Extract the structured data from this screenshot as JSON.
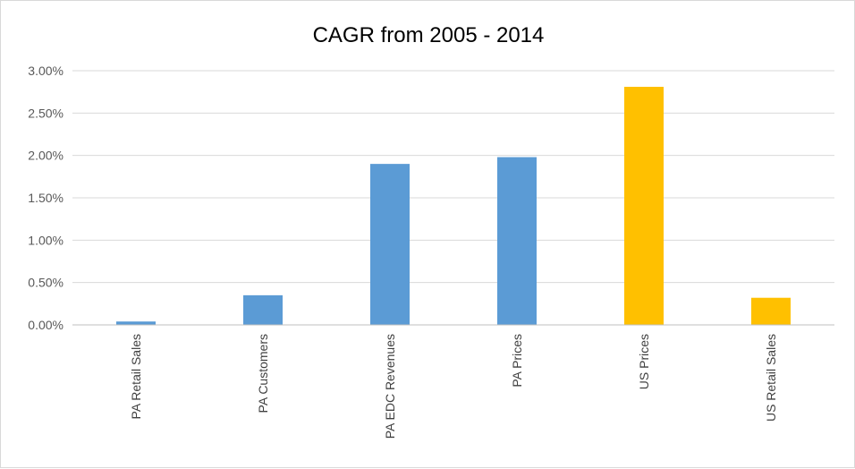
{
  "chart_data": {
    "type": "bar",
    "title": "CAGR from 2005 - 2014",
    "xlabel": "",
    "ylabel": "",
    "categories": [
      "PA Retail Sales",
      "PA Customers",
      "PA EDC Revenues",
      "PA Prices",
      "US Prices",
      "US Retail Sales"
    ],
    "values": [
      0.04,
      0.35,
      1.9,
      1.98,
      2.81,
      0.32
    ],
    "value_unit": "%",
    "bar_colors": [
      "#5b9bd5",
      "#5b9bd5",
      "#5b9bd5",
      "#5b9bd5",
      "#ffc000",
      "#ffc000"
    ],
    "ylim": [
      0,
      3
    ],
    "yticks": [
      0,
      0.5,
      1,
      1.5,
      2,
      2.5,
      3
    ],
    "ytick_labels": [
      "0.00%",
      "0.50%",
      "1.00%",
      "1.50%",
      "2.00%",
      "2.50%",
      "3.00%"
    ],
    "grid": true,
    "legend": "none",
    "colors": {
      "gridline": "#d9d9d9",
      "axis": "#bfbfbf"
    }
  }
}
